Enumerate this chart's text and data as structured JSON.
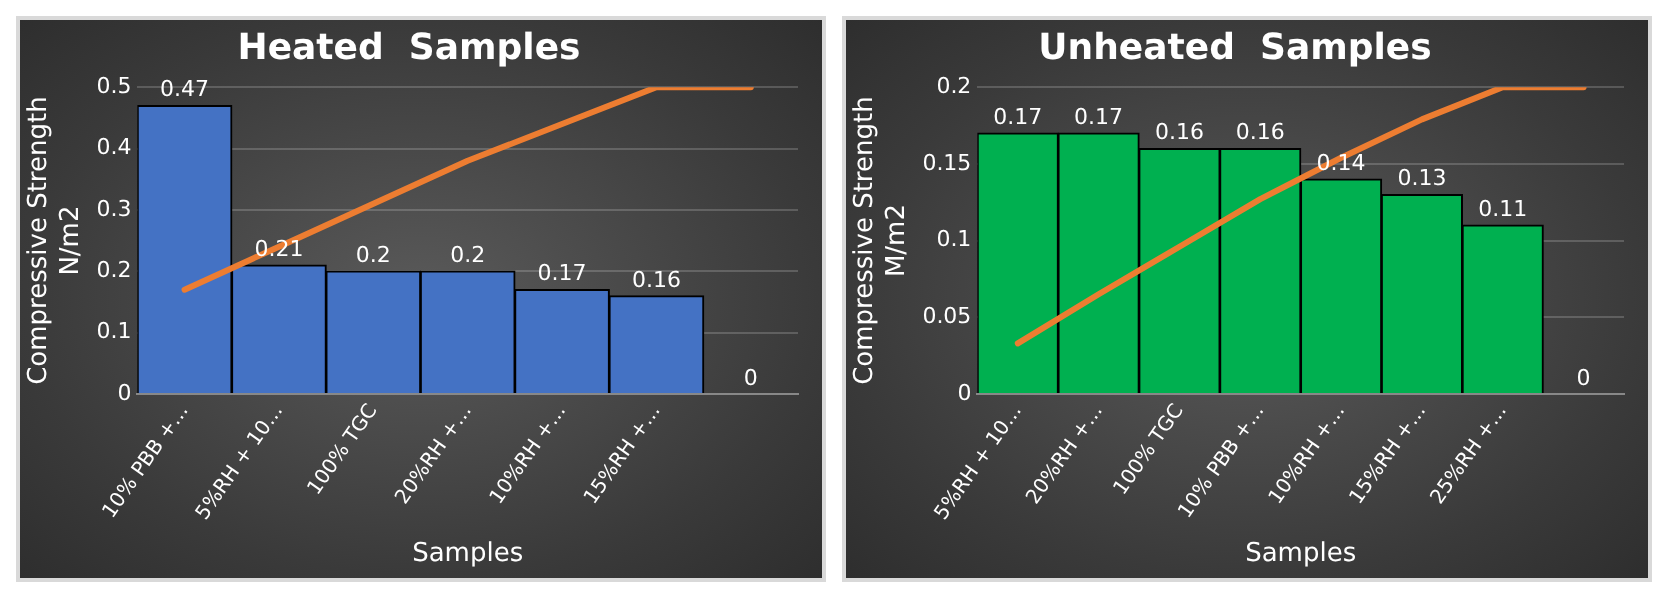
{
  "chart_data": [
    {
      "type": "bar",
      "title": "Heated  Samples",
      "xlabel": "Samples",
      "ylabel": "Compressive Strength\nN/m2",
      "categories": [
        "10% PBB +…",
        "5%RH + 10…",
        "100% TGC",
        "20%RH +…",
        "10%RH +…",
        "15%RH +…",
        null
      ],
      "series": [
        {
          "color": "#4472c4",
          "values": [
            0.47,
            0.21,
            0.2,
            0.2,
            0.17,
            0.16,
            0
          ],
          "value_labels": [
            "0.47",
            "0.21",
            "0.2",
            "0.2",
            "0.17",
            "0.16",
            "0"
          ]
        },
        {
          "type": "line",
          "color": "#ed7d31",
          "values": [
            0.17,
            0.24,
            0.31,
            0.38,
            0.44,
            0.5,
            0.5
          ]
        }
      ],
      "ylim": [
        0,
        0.5
      ],
      "yticks": [
        0,
        0.1,
        0.2,
        0.3,
        0.4,
        0.5
      ],
      "grid": "y",
      "legend": false
    },
    {
      "type": "bar",
      "title": "Unheated  Samples",
      "xlabel": "Samples",
      "ylabel": "Compressive Strength\nM/m2",
      "categories": [
        "5%RH + 10…",
        "20%RH +…",
        "100% TGC",
        "10% PBB +…",
        "10%RH +…",
        "15%RH +…",
        "25%RH +…",
        null
      ],
      "series": [
        {
          "color": "#00b050",
          "values": [
            0.17,
            0.17,
            0.16,
            0.16,
            0.14,
            0.13,
            0.11,
            0
          ],
          "value_labels": [
            "0.17",
            "0.17",
            "0.16",
            "0.16",
            "0.14",
            "0.13",
            "0.11",
            "0"
          ]
        },
        {
          "type": "line",
          "color": "#ed7d31",
          "values": [
            0.033,
            0.065,
            0.096,
            0.127,
            0.154,
            0.179,
            0.2,
            0.2
          ]
        }
      ],
      "ylim": [
        0,
        0.2
      ],
      "yticks": [
        0,
        0.05,
        0.1,
        0.15,
        0.2
      ],
      "grid": "y",
      "legend": false
    }
  ]
}
